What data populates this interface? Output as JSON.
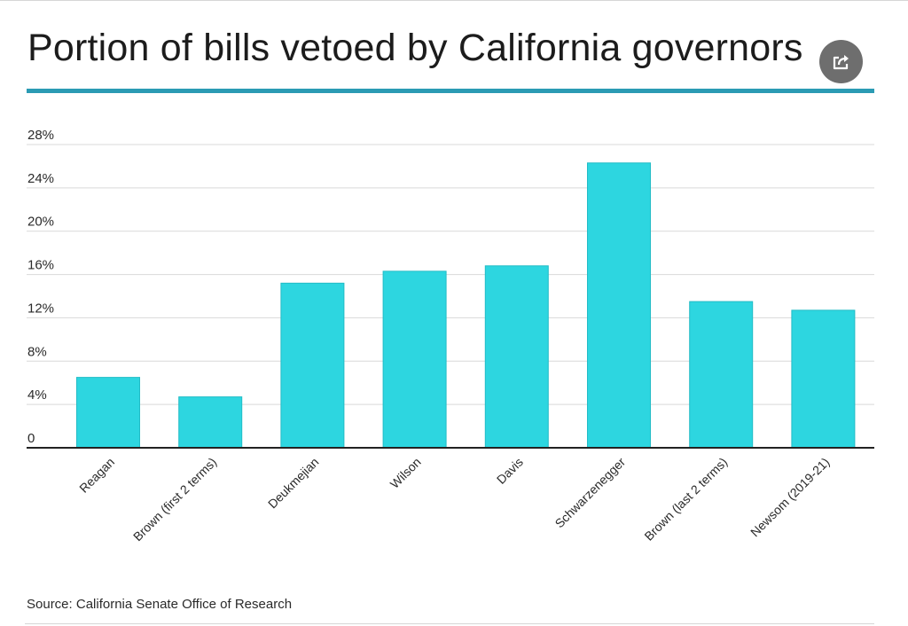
{
  "header": {
    "title": "Portion of bills vetoed by California governors",
    "share_icon": "share-icon"
  },
  "colors": {
    "accent": "#2b9bb4",
    "bar": "#2dd6e0",
    "bar_stroke": "#22bcc6",
    "grid": "#d9d9d9",
    "axis": "#222222",
    "share_bg": "#6e6e6e"
  },
  "chart_data": {
    "type": "bar",
    "title": "Portion of bills vetoed by California governors",
    "xlabel": "",
    "ylabel": "",
    "categories": [
      "Reagan",
      "Brown (first 2 terms)",
      "Deukmejian",
      "Wilson",
      "Davis",
      "Schwarzenegger",
      "Brown (last 2 terms)",
      "Newsom (2019-21)"
    ],
    "values": [
      6.5,
      4.7,
      15.2,
      16.3,
      16.8,
      26.3,
      13.5,
      12.7
    ],
    "unit": "%",
    "ylim": [
      0,
      28
    ],
    "yticks": [
      0,
      4,
      8,
      12,
      16,
      20,
      24,
      28
    ],
    "ytick_labels": [
      "0",
      "4%",
      "8%",
      "12%",
      "16%",
      "20%",
      "24%",
      "28%"
    ],
    "grid": true,
    "legend": "none"
  },
  "footer": {
    "source": "Source: California Senate Office of Research"
  }
}
